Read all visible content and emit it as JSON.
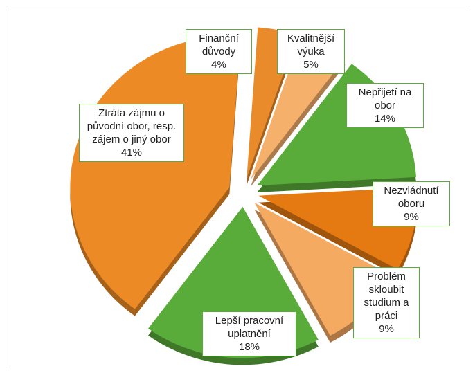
{
  "chart_data": {
    "type": "pie",
    "categories": [
      "Finanční důvody",
      "Kvalitnější výuka",
      "Nepřijetí na obor",
      "Nezvládnutí oboru",
      "Problém skloubit studium a práci",
      "Lepší pracovní uplatnění",
      "Ztráta zájmu o původní obor, resp. zájem o jiný obor"
    ],
    "values": [
      4,
      5,
      14,
      9,
      9,
      18,
      41
    ],
    "value_labels": [
      "4%",
      "5%",
      "14%",
      "9%",
      "9%",
      "18%",
      "41%"
    ],
    "colors": [
      "#e98b2a",
      "#f5b06b",
      "#5aac3a",
      "#e57a12",
      "#f5aa62",
      "#5aac3a",
      "#ec8a25"
    ]
  }
}
